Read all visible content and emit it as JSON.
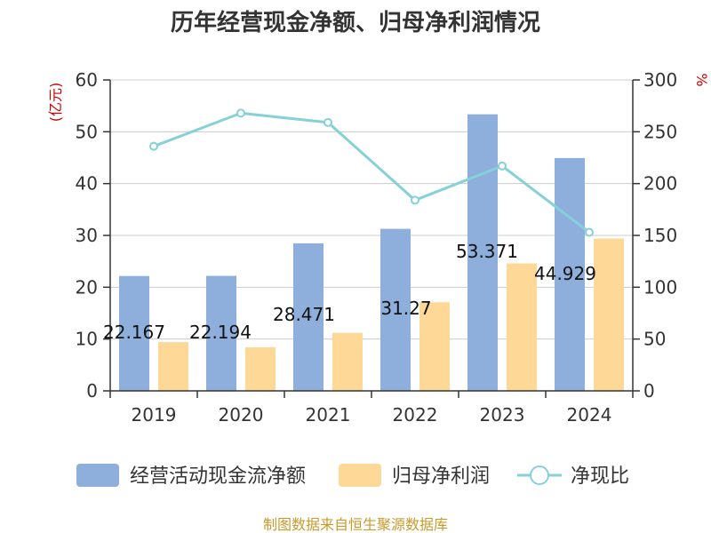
{
  "chart_data": {
    "type": "bar",
    "title": "历年经营现金净额、归母净利润情况",
    "categories": [
      "2019",
      "2020",
      "2021",
      "2022",
      "2023",
      "2024"
    ],
    "series": [
      {
        "name": "经营活动现金流净额",
        "axis": "left",
        "color": "#8eaedb",
        "values": [
          22.167,
          22.194,
          28.471,
          31.27,
          53.371,
          44.929
        ],
        "labels": [
          "22.167",
          "22.194",
          "28.471",
          "31.27",
          "53.371",
          "44.929"
        ]
      },
      {
        "name": "归母净利润",
        "axis": "left",
        "color": "#fdd897",
        "values": [
          9.4,
          8.4,
          11.2,
          17.1,
          24.6,
          29.4
        ]
      },
      {
        "name": "净现比",
        "axis": "right",
        "type": "line",
        "color": "#86d1d7",
        "values": [
          236,
          268,
          259,
          184,
          217,
          153
        ]
      }
    ],
    "y_left": {
      "unit": "(亿元)",
      "min": 0,
      "max": 60,
      "ticks": [
        "0",
        "10",
        "20",
        "30",
        "40",
        "50",
        "60"
      ]
    },
    "y_right": {
      "unit": "%",
      "min": 0,
      "max": 300,
      "ticks": [
        "0",
        "50",
        "100",
        "150",
        "200",
        "250",
        "300"
      ]
    },
    "grid": true,
    "legend_position": "bottom",
    "source": "制图数据来自恒生聚源数据库"
  }
}
